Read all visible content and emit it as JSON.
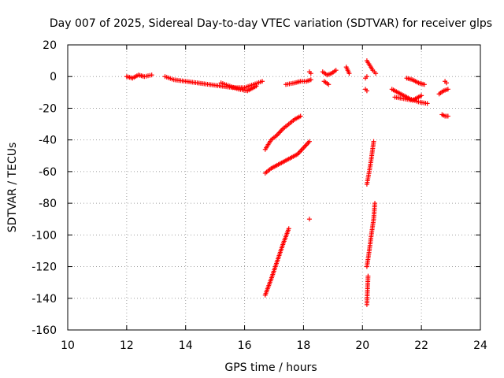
{
  "chart_data": {
    "type": "scatter",
    "title": "Day 007 of 2025, Sidereal Day-to-day VTEC variation (SDTVAR) for receiver glps",
    "xlabel": "GPS time / hours",
    "ylabel": "SDTVAR / TECUs",
    "xlim": [
      10,
      24
    ],
    "ylim": [
      -160,
      20
    ],
    "xticks": [
      10,
      12,
      14,
      16,
      18,
      20,
      22,
      24
    ],
    "yticks": [
      20,
      0,
      -20,
      -40,
      -60,
      -80,
      -100,
      -120,
      -140,
      -160
    ],
    "grid": true,
    "marker": "plus",
    "color": "#ff0000",
    "segments": [
      {
        "x": [
          12.0,
          12.2,
          12.4,
          12.6,
          12.85
        ],
        "y": [
          0,
          -1,
          1,
          0,
          1
        ]
      },
      {
        "x": [
          13.3,
          13.6,
          14.0,
          14.4,
          14.8,
          15.2,
          15.6,
          16.0,
          16.3,
          16.6
        ],
        "y": [
          0,
          -2,
          -3,
          -4,
          -5,
          -6,
          -7,
          -7,
          -5,
          -3
        ]
      },
      {
        "x": [
          15.2,
          15.5,
          15.8,
          16.1,
          16.4
        ],
        "y": [
          -4,
          -6,
          -8,
          -9,
          -6
        ]
      },
      {
        "x": [
          17.4,
          17.7,
          17.9,
          18.1,
          18.25
        ],
        "y": [
          -5,
          -4,
          -3,
          -3,
          -2
        ]
      },
      {
        "x": [
          18.2,
          18.25
        ],
        "y": [
          3,
          2
        ]
      },
      {
        "x": [
          18.65,
          18.8,
          18.95,
          19.1
        ],
        "y": [
          3,
          1,
          2,
          4
        ]
      },
      {
        "x": [
          18.7,
          18.85
        ],
        "y": [
          -3,
          -5
        ]
      },
      {
        "x": [
          19.45,
          19.55
        ],
        "y": [
          6,
          2
        ]
      },
      {
        "x": [
          20.1,
          20.15
        ],
        "y": [
          -1,
          0
        ]
      },
      {
        "x": [
          20.1,
          20.15
        ],
        "y": [
          -8,
          -9
        ]
      },
      {
        "x": [
          20.15,
          20.25,
          20.35,
          20.45
        ],
        "y": [
          10,
          7,
          4,
          2
        ]
      },
      {
        "x": [
          21.0,
          21.3,
          21.6,
          21.9,
          22.2
        ],
        "y": [
          -8,
          -11,
          -14,
          -16,
          -17
        ]
      },
      {
        "x": [
          21.1,
          21.4,
          21.7,
          22.0
        ],
        "y": [
          -13,
          -14,
          -15,
          -12
        ]
      },
      {
        "x": [
          21.5,
          21.7,
          21.9,
          22.1
        ],
        "y": [
          -1,
          -2,
          -4,
          -5
        ]
      },
      {
        "x": [
          22.6,
          22.75,
          22.9
        ],
        "y": [
          -11,
          -9,
          -8
        ]
      },
      {
        "x": [
          22.8,
          22.85
        ],
        "y": [
          -3,
          -4
        ]
      },
      {
        "x": [
          22.7,
          22.8,
          22.9
        ],
        "y": [
          -24,
          -25,
          -25
        ]
      },
      {
        "x": [
          16.7,
          16.9,
          17.1,
          17.3,
          17.5,
          17.7,
          17.9
        ],
        "y": [
          -46,
          -40,
          -37,
          -33,
          -30,
          -27,
          -25
        ]
      },
      {
        "x": [
          16.7,
          16.9,
          17.2,
          17.5,
          17.8,
          18.0,
          18.2
        ],
        "y": [
          -61,
          -58,
          -55,
          -52,
          -49,
          -45,
          -41
        ]
      },
      {
        "x": [
          18.2
        ],
        "y": [
          -90
        ]
      },
      {
        "x": [
          16.7,
          16.9,
          17.1,
          17.3,
          17.5
        ],
        "y": [
          -138,
          -128,
          -117,
          -106,
          -96
        ]
      },
      {
        "x": [
          20.15,
          20.23,
          20.3,
          20.38
        ],
        "y": [
          -68,
          -60,
          -52,
          -41
        ]
      },
      {
        "x": [
          20.15,
          20.23,
          20.3,
          20.38,
          20.42
        ],
        "y": [
          -120,
          -110,
          -100,
          -90,
          -80
        ]
      },
      {
        "x": [
          20.15,
          20.17,
          20.19
        ],
        "y": [
          -144,
          -135,
          -126
        ]
      }
    ]
  }
}
